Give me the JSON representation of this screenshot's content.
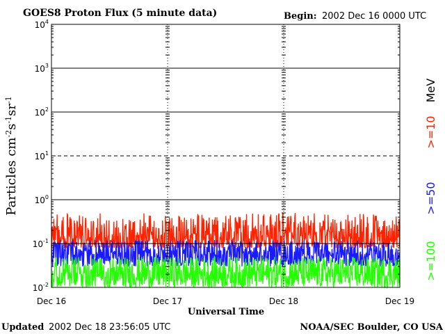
{
  "header": {
    "title": "GOES8 Proton Flux (5 minute data)",
    "begin_label": "Begin:",
    "begin_value": "2002 Dec 16 0000 UTC"
  },
  "footer": {
    "updated_label": "Updated",
    "updated_value": "2002 Dec 18 23:56:05 UTC",
    "credit": "NOAA/SEC Boulder, CO USA"
  },
  "chart_data": {
    "type": "line",
    "title": "GOES8 Proton Flux (5 minute data)",
    "xlabel": "Universal Time",
    "ylabel": "Particles cm-2s-1sr-1",
    "y_scale": "log",
    "ylim": [
      0.01,
      10000
    ],
    "y_ticks": [
      {
        "base": "10",
        "exp": "-2",
        "value": 0.01
      },
      {
        "base": "10",
        "exp": "-1",
        "value": 0.1
      },
      {
        "base": "10",
        "exp": "0",
        "value": 1
      },
      {
        "base": "10",
        "exp": "1",
        "value": 10
      },
      {
        "base": "10",
        "exp": "2",
        "value": 100
      },
      {
        "base": "10",
        "exp": "3",
        "value": 1000
      },
      {
        "base": "10",
        "exp": "4",
        "value": 10000
      }
    ],
    "x_ticks": [
      "Dec 16",
      "Dec 17",
      "Dec 18",
      "Dec 19"
    ],
    "xlim": [
      "2002-12-16 00:00",
      "2002-12-19 00:00"
    ],
    "legend_unit": "MeV",
    "legend_position": "right",
    "grid": {
      "solid_lines_at": [
        0.1,
        1,
        100,
        1000
      ],
      "dashed_lines_at": [
        10
      ],
      "day_separators": "dashed"
    },
    "series": [
      {
        "name": ">=10",
        "color": "#ff2200",
        "typical_range": [
          0.08,
          0.5
        ]
      },
      {
        "name": ">=50",
        "color": "#1a1aff",
        "typical_range": [
          0.03,
          0.12
        ]
      },
      {
        "name": ">=100",
        "color": "#22ff00",
        "typical_range": [
          0.01,
          0.05
        ]
      }
    ]
  }
}
